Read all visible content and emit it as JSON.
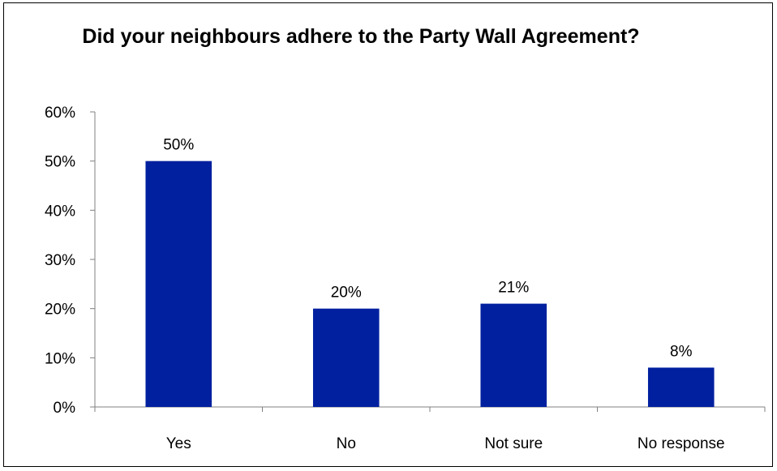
{
  "chart_data": {
    "type": "bar",
    "title": "Did your neighbours adhere to the Party Wall Agreement?",
    "categories": [
      "Yes",
      "No",
      "Not sure",
      "No response"
    ],
    "values": [
      50,
      20,
      21,
      8
    ],
    "data_labels": [
      "50%",
      "20%",
      "21%",
      "8%"
    ],
    "xlabel": "",
    "ylabel": "",
    "ylim": [
      0,
      60
    ],
    "yticks": [
      0,
      10,
      20,
      30,
      40,
      50,
      60
    ],
    "ytick_labels": [
      "0%",
      "10%",
      "20%",
      "30%",
      "40%",
      "50%",
      "60%"
    ],
    "grid": false,
    "legend": "none",
    "bar_color": "#00209F",
    "axis_color": "#808080"
  }
}
